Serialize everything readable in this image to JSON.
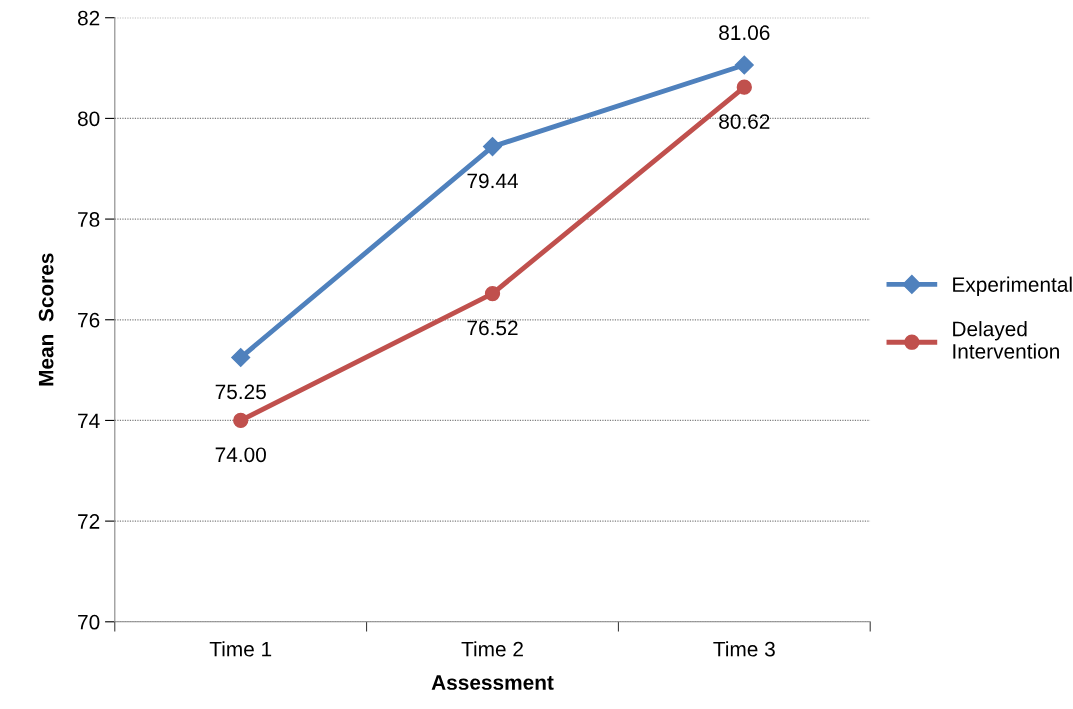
{
  "chart_data": {
    "type": "line",
    "xlabel": "Assessment",
    "ylabel": "Mean  Scores",
    "categories": [
      "Time 1",
      "Time 2",
      "Time 3"
    ],
    "series": [
      {
        "name": "Experimental",
        "color": "#4f81bd",
        "marker": "diamond",
        "values": [
          75.25,
          79.44,
          81.06
        ],
        "value_labels": [
          "75.25",
          "79.44",
          "81.06"
        ]
      },
      {
        "name": "Delayed\nIntervention",
        "color": "#c0504d",
        "marker": "circle",
        "values": [
          74.0,
          76.52,
          80.62
        ],
        "value_labels": [
          "74.00",
          "76.52",
          "80.62"
        ]
      }
    ],
    "ylim": [
      70,
      82
    ],
    "yticks": [
      70,
      72,
      74,
      76,
      78,
      80,
      82
    ],
    "grid": "y",
    "legend": "right",
    "line_style": "solid"
  }
}
